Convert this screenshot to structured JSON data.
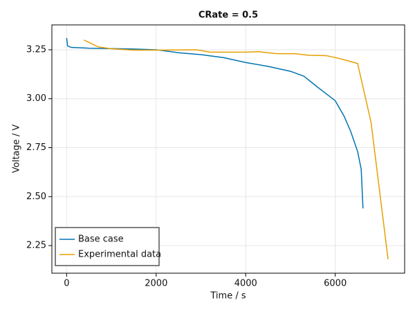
{
  "chart_data": {
    "type": "line",
    "title": "CRate = 0.5",
    "x_label": "Time / s",
    "y_label": "Voltage / V",
    "series": [
      {
        "name": "Base case",
        "color": "#0072b2",
        "x": [
          0,
          20,
          100,
          500,
          1000,
          1500,
          2000,
          2500,
          3000,
          3500,
          4000,
          4500,
          5000,
          5300,
          5600,
          6000,
          6200,
          6350,
          6500,
          6580,
          6620
        ],
        "values": [
          3.31,
          3.27,
          3.262,
          3.258,
          3.256,
          3.254,
          3.25,
          3.235,
          3.225,
          3.21,
          3.185,
          3.165,
          3.14,
          3.115,
          3.06,
          2.99,
          2.91,
          2.83,
          2.73,
          2.64,
          2.44
        ]
      },
      {
        "name": "Experimental data",
        "color": "#e69f00",
        "x": [
          386,
          700,
          1000,
          1500,
          2000,
          2900,
          3200,
          4000,
          4300,
          4700,
          5100,
          5400,
          5800,
          6100,
          6500,
          6800,
          7180
        ],
        "values": [
          3.3,
          3.265,
          3.255,
          3.248,
          3.248,
          3.25,
          3.238,
          3.238,
          3.24,
          3.23,
          3.23,
          3.222,
          3.22,
          3.205,
          3.18,
          2.88,
          2.18
        ]
      }
    ],
    "xlim": [
      -330,
      7550
    ],
    "ylim": [
      2.109,
      3.377
    ],
    "xticks": [
      0,
      2000,
      4000,
      6000
    ],
    "yticks": [
      2.25,
      {
        "value": 2.5,
        "label": "2.50"
      },
      2.75,
      {
        "value": 3,
        "label": "3.00"
      },
      3.25
    ],
    "grid": true,
    "legend": "lower left"
  }
}
